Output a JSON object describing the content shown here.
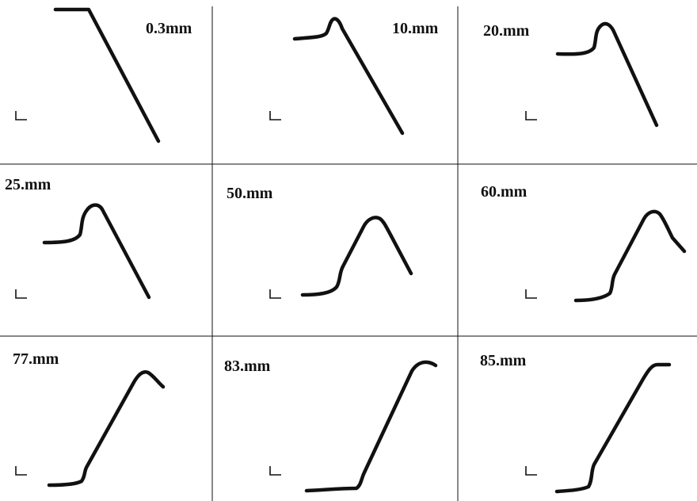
{
  "panels": [
    {
      "label": "0.3mm"
    },
    {
      "label": "10.mm"
    },
    {
      "label": "20.mm"
    },
    {
      "label": "25.mm"
    },
    {
      "label": "50.mm"
    },
    {
      "label": "60.mm"
    },
    {
      "label": "77.mm"
    },
    {
      "label": "83.mm"
    },
    {
      "label": "85.mm"
    }
  ],
  "colors": {
    "ink": "#111111",
    "background": "#ffffff"
  }
}
